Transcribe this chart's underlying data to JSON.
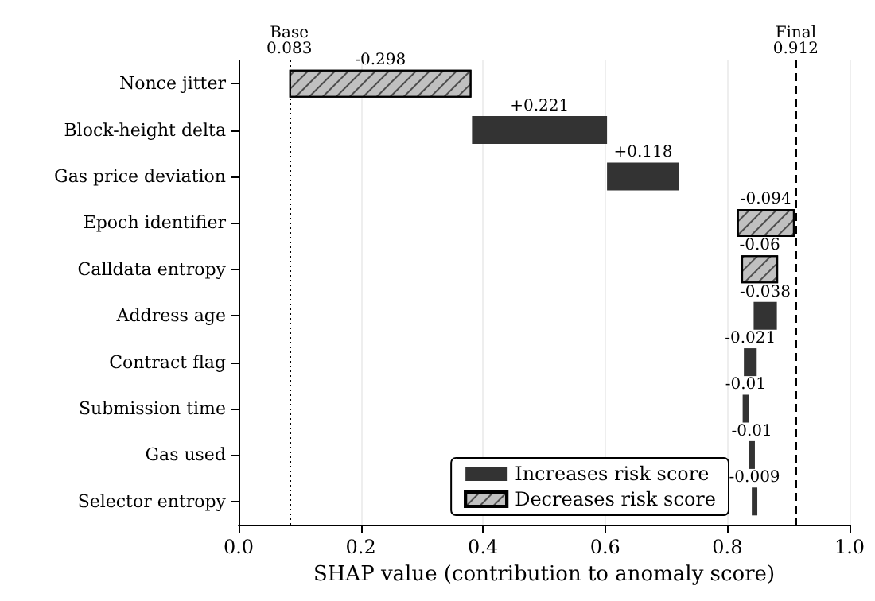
{
  "chart_data": {
    "type": "bar",
    "orientation": "horizontal",
    "xlabel": "SHAP value (contribution to anomaly score)",
    "categories": [
      "Nonce jitter",
      "Block-height delta",
      "Gas price deviation",
      "Epoch identifier",
      "Calldata entropy",
      "Address age",
      "Contract flag",
      "Submission time",
      "Gas used",
      "Selector entropy"
    ],
    "series": [
      {
        "name": "Increases risk score",
        "color": "#333333",
        "base": [
          null,
          0.382,
          0.603,
          null,
          null,
          0.881,
          0.848,
          0.835,
          0.845,
          0.849
        ],
        "values": [
          null,
          0.221,
          0.118,
          null,
          null,
          -0.038,
          -0.021,
          -0.01,
          -0.01,
          -0.009
        ],
        "value_labels": [
          null,
          "+0.221",
          "+0.118",
          null,
          null,
          "-0.038",
          "-0.021",
          "-0.01",
          "-0.01",
          "-0.009"
        ]
      },
      {
        "name": "Decreases risk score",
        "color": "#c0c0c0",
        "base": [
          0.381,
          null,
          null,
          0.91,
          0.883,
          null,
          null,
          null,
          null,
          null
        ],
        "values": [
          -0.298,
          null,
          null,
          -0.094,
          -0.06,
          null,
          null,
          null,
          null,
          null
        ],
        "value_labels": [
          "-0.298",
          null,
          null,
          "-0.094",
          "-0.06",
          null,
          null,
          null,
          null,
          null
        ]
      }
    ],
    "ref_lines": [
      {
        "axis": "x",
        "value": 0.083,
        "label": "Base\n0.083",
        "line_style": "dotted",
        "color": "#000000"
      },
      {
        "axis": "x",
        "value": 0.912,
        "label": "Final\n0.912",
        "line_style": "dashed",
        "color": "#000000"
      }
    ],
    "xlim": [
      0,
      1
    ],
    "xticks": [
      {
        "value": 0,
        "label": "0.0"
      },
      0.2,
      0.4,
      0.6,
      0.8,
      {
        "value": 1,
        "label": "1.0"
      }
    ],
    "grid": "x",
    "legend": "bottom right"
  }
}
